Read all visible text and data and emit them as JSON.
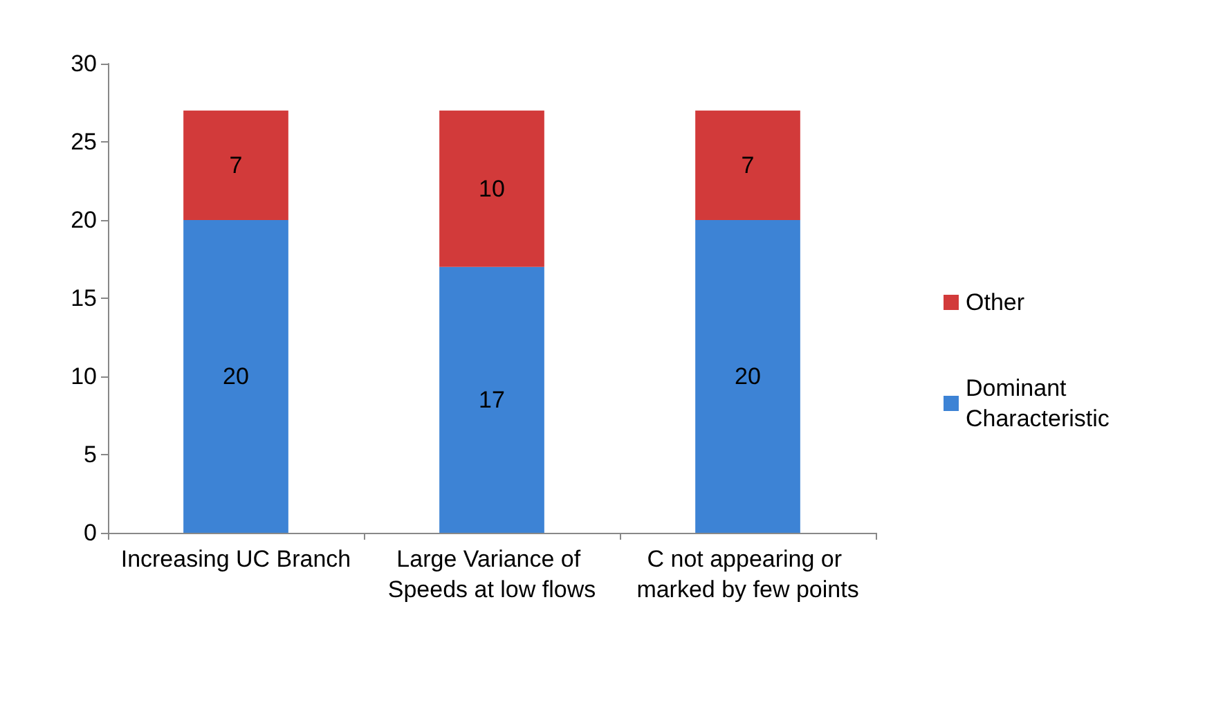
{
  "chart_data": {
    "type": "bar",
    "stacked": true,
    "categories": [
      "Increasing UC Branch",
      "Large Variance of Speeds at low flows",
      "C not appearing or marked by few points"
    ],
    "series": [
      {
        "name": "Dominant Characteristic",
        "color": "#3d83d5",
        "values": [
          20,
          17,
          20
        ]
      },
      {
        "name": "Other",
        "color": "#d23a3a",
        "values": [
          7,
          10,
          7
        ]
      }
    ],
    "ylim": [
      0,
      30
    ],
    "yticks": [
      0,
      5,
      10,
      15,
      20,
      25,
      30
    ],
    "grid": false,
    "legend": "right",
    "data_labels": true
  }
}
